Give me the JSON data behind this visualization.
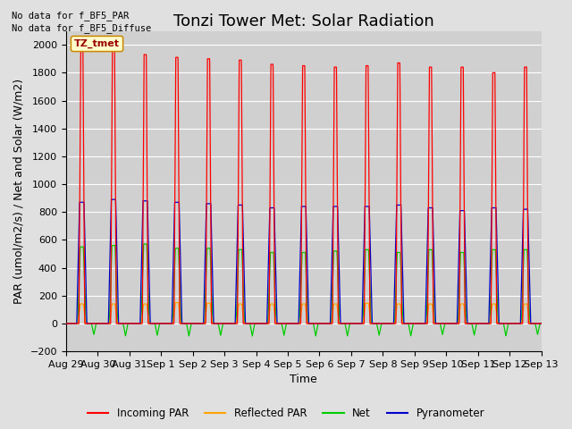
{
  "title": "Tonzi Tower Met: Solar Radiation",
  "ylabel": "PAR (umol/m2/s) / Net and Solar (W/m2)",
  "xlabel": "Time",
  "ylim": [
    -200,
    2100
  ],
  "yticks": [
    -200,
    0,
    200,
    400,
    600,
    800,
    1000,
    1200,
    1400,
    1600,
    1800,
    2000
  ],
  "x_tick_labels": [
    "Aug 29",
    "Aug 30",
    "Aug 31",
    "Sep 1",
    "Sep 2",
    "Sep 3",
    "Sep 4",
    "Sep 5",
    "Sep 6",
    "Sep 7",
    "Sep 8",
    "Sep 9",
    "Sep 10",
    "Sep 11",
    "Sep 12",
    "Sep 13"
  ],
  "note_line1": "No data for f_BF5_PAR",
  "note_line2": "No data for f_BF5_Diffuse",
  "legend_label_box": "TZ_tmet",
  "legend_entries": [
    "Incoming PAR",
    "Reflected PAR",
    "Net",
    "Pyranometer"
  ],
  "background_color": "#e0e0e0",
  "plot_bg_color": "#d0d0d0",
  "grid_color": "#ffffff",
  "num_days": 15,
  "day_peak_red": [
    2000,
    1960,
    1930,
    1910,
    1900,
    1890,
    1860,
    1850,
    1840,
    1850,
    1870,
    1840,
    1840,
    1800,
    1840
  ],
  "day_peak_blue": [
    870,
    890,
    880,
    870,
    860,
    850,
    830,
    840,
    840,
    840,
    850,
    830,
    810,
    830,
    820
  ],
  "day_peak_green": [
    550,
    560,
    570,
    540,
    540,
    530,
    510,
    510,
    520,
    530,
    510,
    530,
    510,
    530,
    530
  ],
  "day_peak_orange": [
    140,
    140,
    140,
    150,
    145,
    140,
    140,
    140,
    140,
    145,
    140,
    140,
    140,
    140,
    140
  ],
  "day_trough_green": [
    -80,
    -90,
    -85,
    -90,
    -85,
    -90,
    -85,
    -90,
    -90,
    -85,
    -90,
    -80,
    -85,
    -90,
    -80
  ],
  "title_fontsize": 13,
  "axis_fontsize": 9,
  "tick_fontsize": 8,
  "legend_box_color": "#ffffcc",
  "legend_box_edge": "#cc8800"
}
